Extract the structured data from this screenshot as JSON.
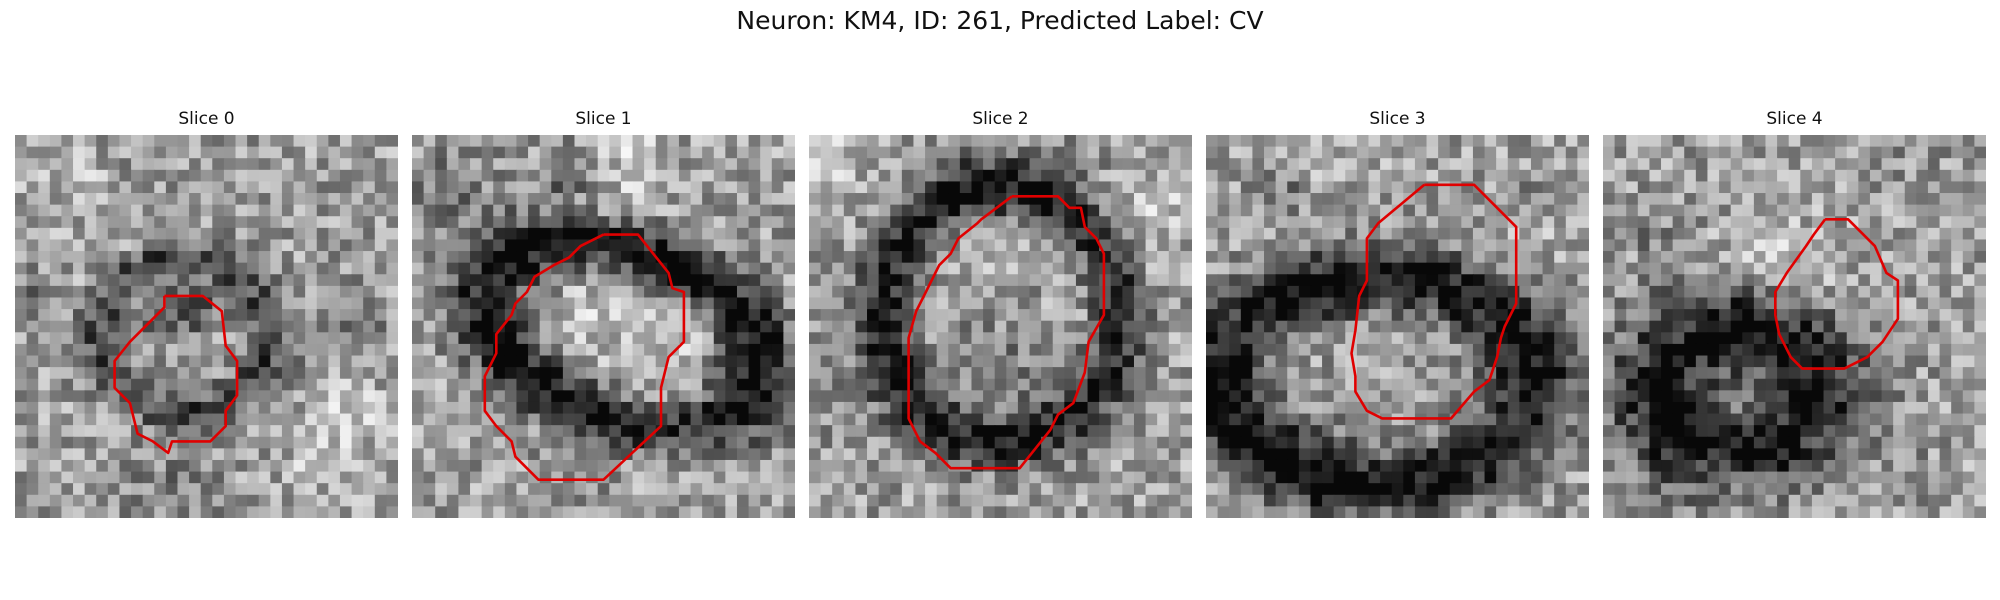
{
  "figure": {
    "title": "Neuron: KM4, ID: 261, Predicted Label: CV",
    "outline_color": "#e00000"
  },
  "panels": [
    {
      "title": "Slice 0"
    },
    {
      "title": "Slice 1"
    },
    {
      "title": "Slice 2"
    },
    {
      "title": "Slice 3"
    },
    {
      "title": "Slice 4"
    }
  ]
}
